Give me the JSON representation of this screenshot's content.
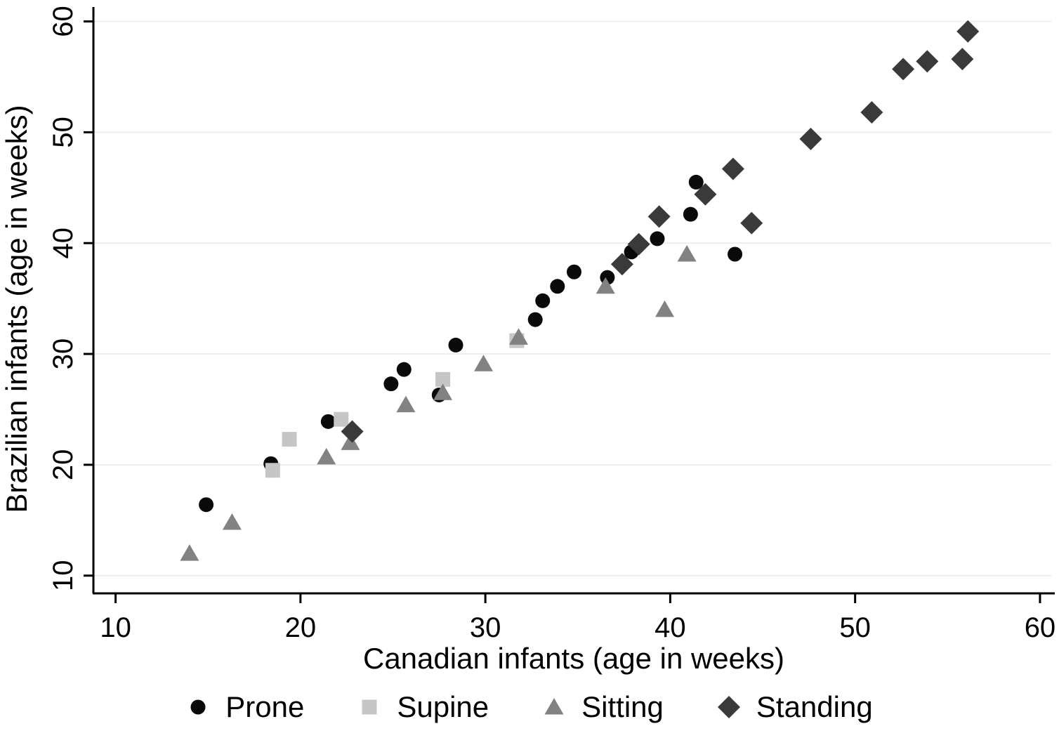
{
  "chart_data": {
    "type": "scatter",
    "title": "",
    "xlabel": "Canadian infants (age in weeks)",
    "ylabel": "Brazilian infants (age in weeks)",
    "x_ticks": [
      10,
      20,
      30,
      40,
      50,
      60
    ],
    "y_ticks": [
      10,
      20,
      30,
      40,
      50,
      60
    ],
    "xlim": [
      8.8,
      60.8
    ],
    "ylim": [
      8.4,
      61.3
    ],
    "grid": "horizontal-only",
    "legend_position": "bottom",
    "colors": {
      "background": "#ffffff",
      "axis": "#000000",
      "gridline": "#e7f0f2",
      "prone": "#0a0a0a",
      "supine": "#c6c6c6",
      "sitting": "#828282",
      "standing": "#3a3a3a"
    },
    "series": [
      {
        "name": "Prone",
        "marker": "circle",
        "color": "#0a0a0a",
        "points": [
          [
            14.9,
            16.4
          ],
          [
            18.4,
            20.1
          ],
          [
            21.5,
            23.9
          ],
          [
            24.9,
            27.3
          ],
          [
            25.6,
            28.6
          ],
          [
            27.5,
            26.3
          ],
          [
            28.4,
            30.8
          ],
          [
            32.7,
            33.1
          ],
          [
            33.1,
            34.8
          ],
          [
            33.9,
            36.1
          ],
          [
            34.8,
            37.4
          ],
          [
            36.6,
            36.9
          ],
          [
            37.9,
            39.2
          ],
          [
            39.3,
            40.4
          ],
          [
            41.1,
            42.6
          ],
          [
            41.4,
            45.5
          ],
          [
            43.5,
            39.0
          ]
        ]
      },
      {
        "name": "Supine",
        "marker": "square",
        "color": "#c6c6c6",
        "points": [
          [
            18.5,
            19.5
          ],
          [
            19.4,
            22.3
          ],
          [
            22.2,
            24.1
          ],
          [
            27.7,
            27.7
          ],
          [
            31.7,
            31.2
          ]
        ]
      },
      {
        "name": "Sitting",
        "marker": "triangle",
        "color": "#828282",
        "points": [
          [
            14.0,
            12.0
          ],
          [
            16.3,
            14.8
          ],
          [
            21.4,
            20.7
          ],
          [
            22.7,
            22.0
          ],
          [
            25.7,
            25.4
          ],
          [
            27.7,
            26.5
          ],
          [
            29.9,
            29.1
          ],
          [
            31.8,
            31.5
          ],
          [
            36.5,
            36.1
          ],
          [
            39.7,
            34.0
          ],
          [
            40.9,
            39.0
          ]
        ]
      },
      {
        "name": "Standing",
        "marker": "diamond",
        "color": "#3a3a3a",
        "points": [
          [
            22.8,
            23.0
          ],
          [
            37.4,
            38.1
          ],
          [
            38.3,
            39.9
          ],
          [
            39.4,
            42.4
          ],
          [
            41.9,
            44.4
          ],
          [
            43.4,
            46.7
          ],
          [
            44.4,
            41.8
          ],
          [
            47.6,
            49.4
          ],
          [
            50.9,
            51.8
          ],
          [
            52.6,
            55.7
          ],
          [
            53.9,
            56.4
          ],
          [
            55.8,
            56.6
          ],
          [
            56.1,
            59.1
          ]
        ]
      }
    ]
  }
}
